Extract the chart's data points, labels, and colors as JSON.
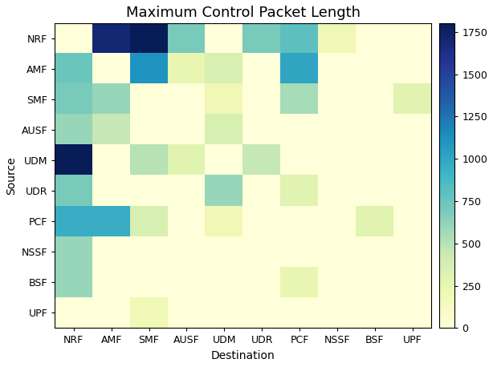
{
  "labels": [
    "NRF",
    "AMF",
    "SMF",
    "AUSF",
    "UDM",
    "UDR",
    "PCF",
    "NSSF",
    "BSF",
    "UPF"
  ],
  "title": "Maximum Control Packet Length",
  "xlabel": "Destination",
  "ylabel": "Source",
  "colorbar_ticks": [
    0,
    250,
    500,
    750,
    1000,
    1250,
    1500,
    1750
  ],
  "vmin": 0,
  "vmax": 1800,
  "matrix": [
    [
      0,
      1700,
      1800,
      700,
      0,
      700,
      800,
      200,
      0,
      0
    ],
    [
      750,
      0,
      1100,
      250,
      350,
      0,
      1000,
      0,
      0,
      0
    ],
    [
      700,
      600,
      0,
      0,
      200,
      0,
      550,
      0,
      0,
      300
    ],
    [
      600,
      450,
      0,
      0,
      350,
      0,
      0,
      0,
      0,
      0
    ],
    [
      1800,
      0,
      500,
      300,
      0,
      450,
      0,
      0,
      0,
      0
    ],
    [
      700,
      0,
      0,
      0,
      600,
      0,
      300,
      0,
      0,
      0
    ],
    [
      950,
      950,
      350,
      0,
      200,
      0,
      0,
      0,
      300,
      0
    ],
    [
      600,
      0,
      0,
      0,
      0,
      0,
      0,
      0,
      0,
      0
    ],
    [
      600,
      0,
      0,
      0,
      0,
      0,
      250,
      0,
      0,
      0
    ],
    [
      0,
      0,
      200,
      0,
      0,
      0,
      0,
      0,
      0,
      0
    ]
  ],
  "cmap": "YlGnBu",
  "figsize": [
    6.14,
    4.58
  ],
  "dpi": 100
}
